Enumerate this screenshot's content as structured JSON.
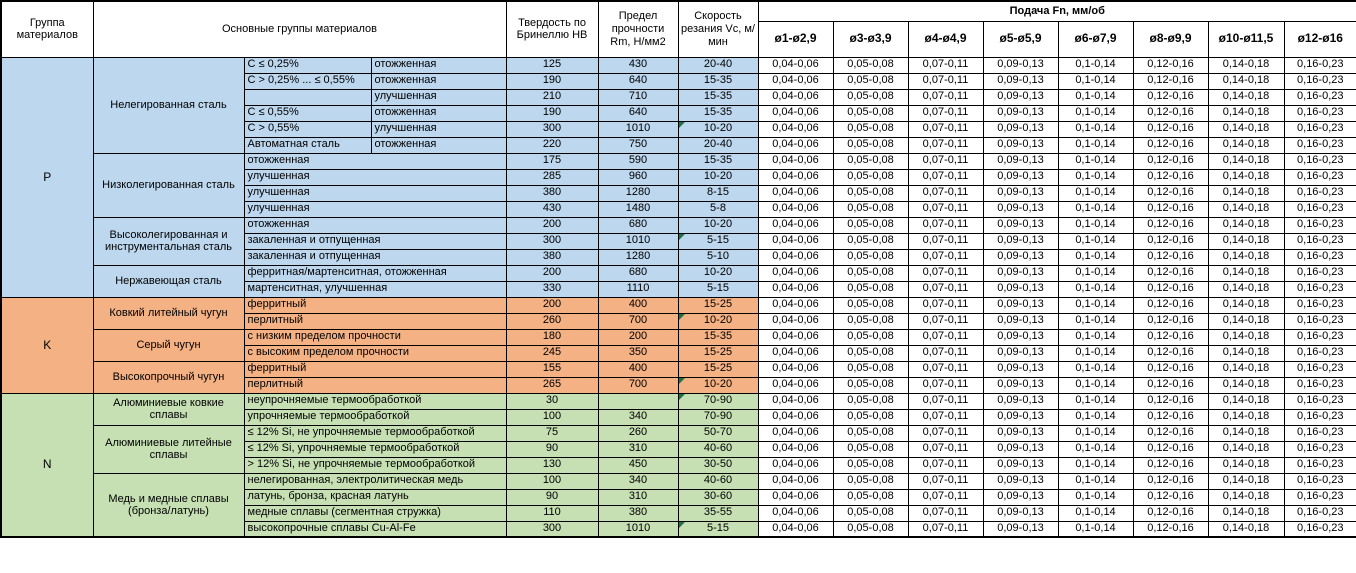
{
  "table": {
    "headers": {
      "group": "Группа материалов",
      "main": "Основные группы материалов",
      "hardness": "Твердость по Бринеллю HB",
      "strength": "Предел прочности Rm, Н/мм2",
      "speed": "Скорость резания Vc, м/мин",
      "feed": "Подача Fn, мм/об",
      "feed_diameters": [
        "ø1-ø2,9",
        "ø3-ø3,9",
        "ø4-ø4,9",
        "ø5-ø5,9",
        "ø6-ø7,9",
        "ø8-ø9,9",
        "ø10-ø11,5",
        "ø12-ø16"
      ]
    },
    "feed_values": [
      "0,04-0,06",
      "0,05-0,08",
      "0,07-0,11",
      "0,09-0,13",
      "0,1-0,14",
      "0,12-0,16",
      "0,14-0,18",
      "0,16-0,23"
    ],
    "marker_color": "#1f7145",
    "groups": [
      {
        "code": "P",
        "color": "#bdd7ee",
        "subgroups": [
          {
            "name": "Нелегированная сталь",
            "rows": [
              {
                "d1": "C ≤ 0,25%",
                "d2": "отожженная",
                "hb": "125",
                "rm": "430",
                "vc": "20-40"
              },
              {
                "d1": "C > 0,25% ... ≤ 0,55%",
                "d2": "отожженная",
                "hb": "190",
                "rm": "640",
                "vc": "15-35"
              },
              {
                "d1": "",
                "d2": "улучшенная",
                "hb": "210",
                "rm": "710",
                "vc": "15-35"
              },
              {
                "d1": "C ≤ 0,55%",
                "d2": "отожженная",
                "hb": "190",
                "rm": "640",
                "vc": "15-35"
              },
              {
                "d1": "C > 0,55%",
                "d2": "улучшенная",
                "hb": "300",
                "rm": "1010",
                "vc": "10-20",
                "marker": true
              },
              {
                "d1": "Автоматная сталь",
                "d2": "отожженная",
                "hb": "220",
                "rm": "750",
                "vc": "20-40"
              }
            ]
          },
          {
            "name": "Низколегированная сталь",
            "rows": [
              {
                "d": "отожженная",
                "hb": "175",
                "rm": "590",
                "vc": "15-35"
              },
              {
                "d": "улучшенная",
                "hb": "285",
                "rm": "960",
                "vc": "10-20"
              },
              {
                "d": "улучшенная",
                "hb": "380",
                "rm": "1280",
                "vc": "8-15"
              },
              {
                "d": "улучшенная",
                "hb": "430",
                "rm": "1480",
                "vc": "5-8"
              }
            ]
          },
          {
            "name": "Высоколегированная и инструментальная сталь",
            "rows": [
              {
                "d": "отожженная",
                "hb": "200",
                "rm": "680",
                "vc": "10-20"
              },
              {
                "d": "закаленная и отпущенная",
                "hb": "300",
                "rm": "1010",
                "vc": "5-15",
                "marker": true
              },
              {
                "d": "закаленная и отпущенная",
                "hb": "380",
                "rm": "1280",
                "vc": "5-10"
              }
            ]
          },
          {
            "name": "Нержавеющая сталь",
            "rows": [
              {
                "d": "ферритная/мартенситная, отожженная",
                "hb": "200",
                "rm": "680",
                "vc": "10-20"
              },
              {
                "d": "мартенситная, улучшенная",
                "hb": "330",
                "rm": "1110",
                "vc": "5-15"
              }
            ]
          }
        ]
      },
      {
        "code": "K",
        "color": "#f4b183",
        "subgroups": [
          {
            "name": "Ковкий литейный чугун",
            "rows": [
              {
                "d": "ферритный",
                "hb": "200",
                "rm": "400",
                "vc": "15-25"
              },
              {
                "d": "перлитный",
                "hb": "260",
                "rm": "700",
                "vc": "10-20",
                "marker": true
              }
            ]
          },
          {
            "name": "Серый чугун",
            "rows": [
              {
                "d": "с низким пределом прочности",
                "hb": "180",
                "rm": "200",
                "vc": "15-35"
              },
              {
                "d": "с высоким пределом прочности",
                "hb": "245",
                "rm": "350",
                "vc": "15-25"
              }
            ]
          },
          {
            "name": "Высокопрочный чугун",
            "rows": [
              {
                "d": "ферритный",
                "hb": "155",
                "rm": "400",
                "vc": "15-25"
              },
              {
                "d": "перлитный",
                "hb": "265",
                "rm": "700",
                "vc": "10-20",
                "marker": true
              }
            ]
          }
        ]
      },
      {
        "code": "N",
        "color": "#c6e0b4",
        "subgroups": [
          {
            "name": "Алюминиевые ковкие сплавы",
            "rows": [
              {
                "d": "неупрочняемые термообработкой",
                "hb": "30",
                "rm": "",
                "vc": "70-90",
                "marker": true
              },
              {
                "d": "упрочняемые термообработкой",
                "hb": "100",
                "rm": "340",
                "vc": "70-90"
              }
            ]
          },
          {
            "name": "Алюминиевые литейные сплавы",
            "rows": [
              {
                "d": "≤ 12% Si, не упрочняемые термообработкой",
                "hb": "75",
                "rm": "260",
                "vc": "50-70"
              },
              {
                "d": "≤ 12% Si, упрочняемые термообработкой",
                "hb": "90",
                "rm": "310",
                "vc": "40-60"
              },
              {
                "d": "> 12% Si, не упрочняемые термообработкой",
                "hb": "130",
                "rm": "450",
                "vc": "30-50"
              }
            ]
          },
          {
            "name": "Медь и медные сплавы (бронза/латунь)",
            "rows": [
              {
                "d": "нелегированная, электролитическая медь",
                "hb": "100",
                "rm": "340",
                "vc": "40-60"
              },
              {
                "d": "латунь, бронза, красная латунь",
                "hb": "90",
                "rm": "310",
                "vc": "30-60"
              },
              {
                "d": "медные сплавы (сегментная стружка)",
                "hb": "110",
                "rm": "380",
                "vc": "35-55"
              },
              {
                "d": "высокопрочные сплавы Cu-Al-Fe",
                "hb": "300",
                "rm": "1010",
                "vc": "5-15",
                "marker": true
              }
            ]
          }
        ]
      }
    ]
  }
}
